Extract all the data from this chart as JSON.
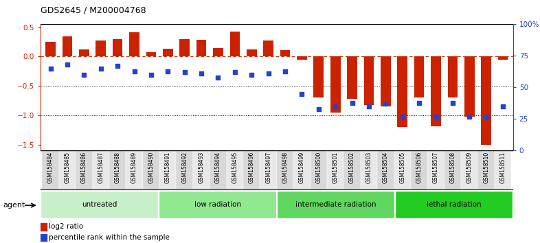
{
  "title": "GDS2645 / M200004768",
  "samples": [
    "GSM158484",
    "GSM158485",
    "GSM158486",
    "GSM158487",
    "GSM158488",
    "GSM158489",
    "GSM158490",
    "GSM158491",
    "GSM158492",
    "GSM158493",
    "GSM158494",
    "GSM158495",
    "GSM158496",
    "GSM158497",
    "GSM158498",
    "GSM158499",
    "GSM158500",
    "GSM158501",
    "GSM158502",
    "GSM158503",
    "GSM158504",
    "GSM158505",
    "GSM158506",
    "GSM158507",
    "GSM158508",
    "GSM158509",
    "GSM158510",
    "GSM158511"
  ],
  "log2_ratio": [
    0.25,
    0.35,
    0.12,
    0.28,
    0.3,
    0.42,
    0.08,
    0.14,
    0.3,
    0.29,
    0.15,
    0.43,
    0.12,
    0.27,
    0.11,
    -0.05,
    -0.7,
    -0.95,
    -0.72,
    -0.82,
    -0.85,
    -1.2,
    -0.7,
    -1.18,
    -0.7,
    -1.02,
    -1.5,
    -0.05
  ],
  "percentile_rank": [
    65,
    68,
    60,
    65,
    67,
    63,
    60,
    63,
    62,
    61,
    58,
    62,
    60,
    61,
    63,
    45,
    33,
    35,
    38,
    35,
    37,
    27,
    38,
    27,
    38,
    27,
    27,
    35
  ],
  "groups": [
    {
      "label": "untreated",
      "start": 0,
      "end": 7,
      "color": "#c8f0c8"
    },
    {
      "label": "low radiation",
      "start": 7,
      "end": 14,
      "color": "#90e890"
    },
    {
      "label": "intermediate radiation",
      "start": 14,
      "end": 21,
      "color": "#60d860"
    },
    {
      "label": "lethal radiation",
      "start": 21,
      "end": 28,
      "color": "#22cc22"
    }
  ],
  "bar_color": "#cc2200",
  "dot_color": "#2244cc",
  "dashed_line_color": "#cc3300",
  "ylim_left": [
    -1.6,
    0.55
  ],
  "ylim_right": [
    0,
    100
  ],
  "yticks_left": [
    -1.5,
    -1.0,
    -0.5,
    0.0,
    0.5
  ],
  "yticks_right": [
    0,
    25,
    50,
    75,
    100
  ],
  "background_color": "#ffffff"
}
